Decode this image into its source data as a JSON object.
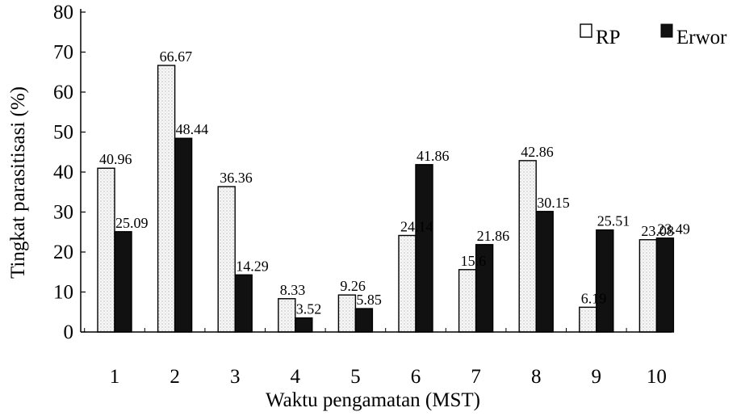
{
  "chart_data": {
    "type": "bar",
    "xlabel": "Waktu pengamatan (MST)",
    "ylabel": "Tingkat parasitisasi (%)",
    "ylim": [
      0,
      80
    ],
    "yticks": [
      0,
      10,
      20,
      30,
      40,
      50,
      60,
      70,
      80
    ],
    "grid": false,
    "legend_position": "top-right",
    "categories": [
      "1",
      "2",
      "3",
      "4",
      "5",
      "6",
      "7",
      "8",
      "9",
      "10"
    ],
    "series": [
      {
        "name": "RP",
        "color": "#f4f4f4",
        "values": [
          40.96,
          66.67,
          36.36,
          8.33,
          9.26,
          24.14,
          15.6,
          42.86,
          6.19,
          23.08
        ],
        "labels": [
          "40.96",
          "66.67",
          "36.36",
          "8.33",
          "9.26",
          "24.14",
          "15.6",
          "42.86",
          "6.19",
          "23.08"
        ]
      },
      {
        "name": "Erwor",
        "color": "#111111",
        "values": [
          25.09,
          48.44,
          14.29,
          3.52,
          5.85,
          41.86,
          21.86,
          30.15,
          25.51,
          23.49
        ],
        "labels": [
          "25.09",
          "48.44",
          "14.29",
          "3.52",
          "5.85",
          "41.86",
          "21.86",
          "30.15",
          "25.51",
          "23.49"
        ]
      }
    ]
  }
}
